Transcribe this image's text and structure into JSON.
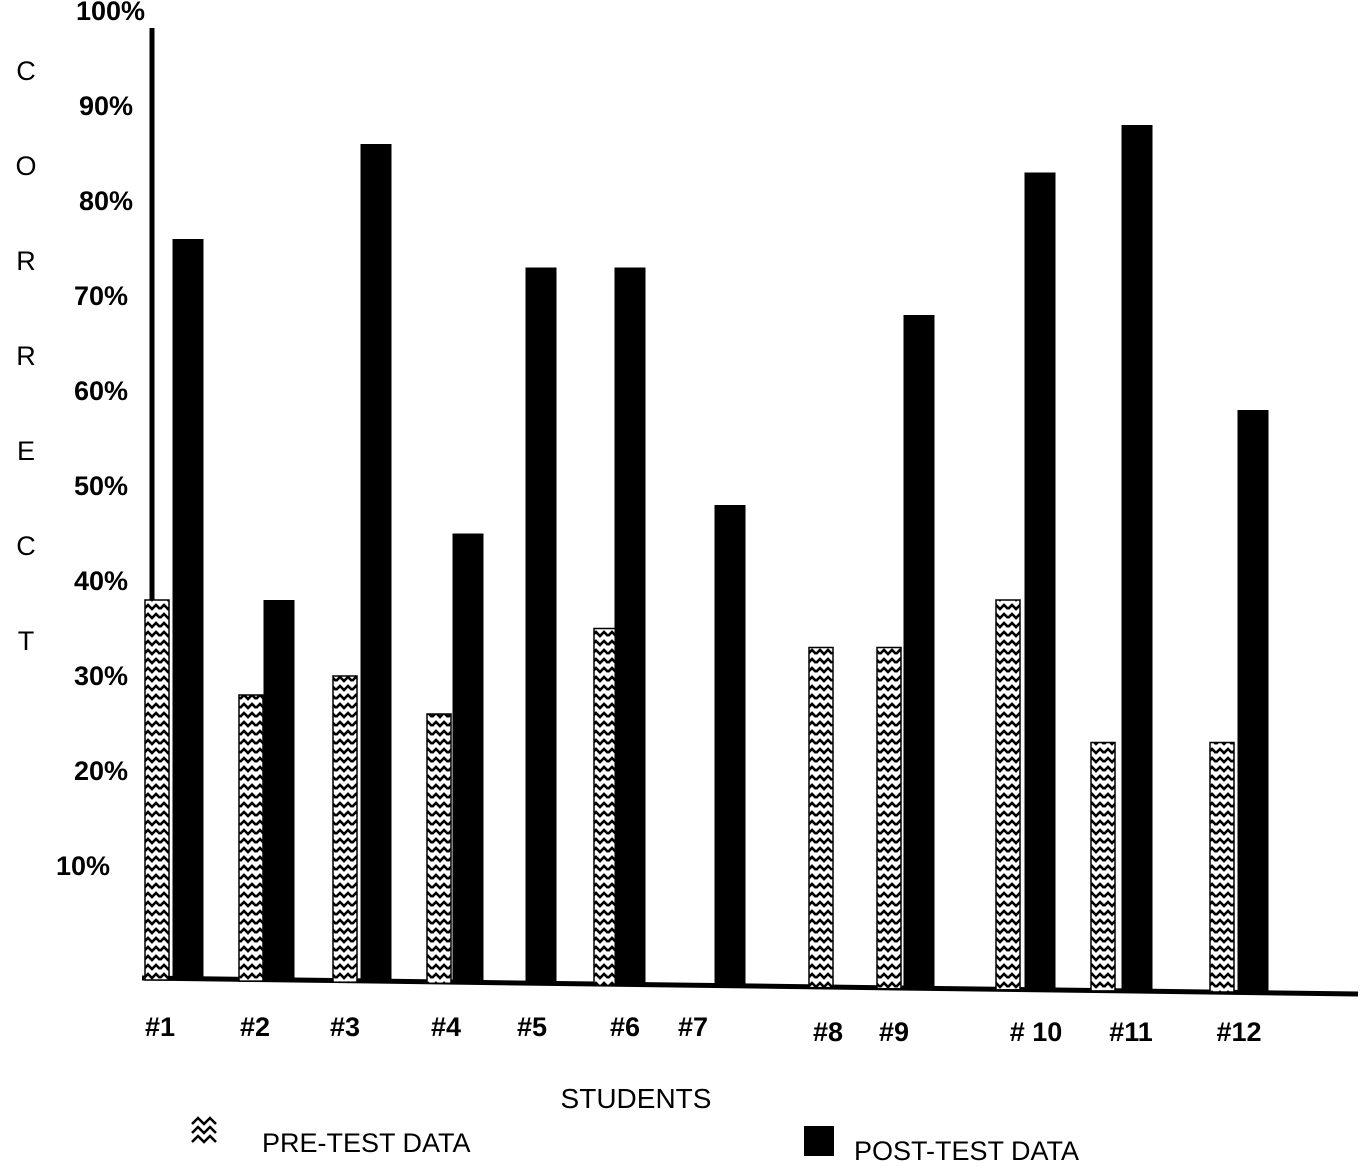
{
  "chart_data": {
    "type": "bar",
    "categories": [
      "#1",
      "#2",
      "#3",
      "#4",
      "#5",
      "#6",
      "#7",
      "#8",
      "#9",
      "# 10",
      "#11",
      "#12"
    ],
    "series": [
      {
        "name": "PRE-TEST DATA",
        "values": [
          40,
          30,
          32,
          28,
          35,
          37,
          null,
          35,
          35,
          40,
          25,
          25
        ]
      },
      {
        "name": "POST-TEST DATA",
        "values": [
          78,
          40,
          88,
          47,
          75,
          75,
          50,
          null,
          70,
          85,
          90,
          60
        ]
      }
    ],
    "xlabel": "STUDENTS",
    "ylabel": "CORRECT",
    "ylim": [
      0,
      100
    ],
    "yticks": [
      "10%",
      "20%",
      "30%",
      "40%",
      "50%",
      "60%",
      "70%",
      "80%",
      "90%",
      "100%"
    ],
    "colors": {
      "pre": "#000000",
      "post": "#000000",
      "background": "#ffffff"
    },
    "legend_placement": "bottom",
    "grid": false
  }
}
